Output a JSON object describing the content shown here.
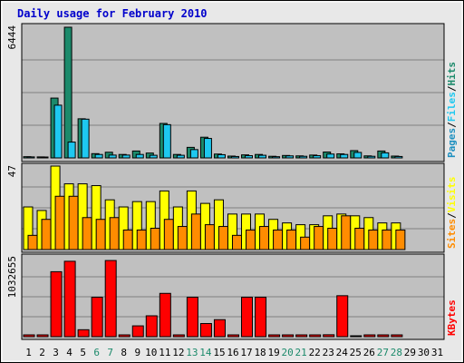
{
  "chart_data": {
    "type": "bar",
    "title": "Daily usage for February 2010",
    "x_labels": [
      "1",
      "2",
      "3",
      "4",
      "5",
      "6",
      "7",
      "8",
      "9",
      "10",
      "11",
      "12",
      "13",
      "14",
      "15",
      "16",
      "17",
      "18",
      "19",
      "20",
      "21",
      "22",
      "23",
      "24",
      "25",
      "26",
      "27",
      "28",
      "29",
      "30",
      "31"
    ],
    "weekend_days": [
      "6",
      "7",
      "13",
      "14",
      "20",
      "21",
      "27",
      "28"
    ],
    "panels": [
      {
        "ymax": 6444,
        "ymax_label": "6444",
        "legend": [
          "Pages",
          "/",
          "Files",
          "/",
          "Hits"
        ],
        "series": [
          {
            "name": "Hits",
            "values": [
              60,
              50,
              2950,
              6444,
              1930,
              210,
              280,
              170,
              340,
              240,
              1700,
              170,
              520,
              1020,
              190,
              90,
              150,
              170,
              80,
              120,
              100,
              140,
              290,
              200,
              360,
              100,
              340,
              90,
              0,
              0,
              0
            ]
          },
          {
            "name": "Files",
            "values": [
              50,
              40,
              2600,
              780,
              1910,
              170,
              140,
              140,
              170,
              130,
              1640,
              130,
              410,
              960,
              160,
              70,
              110,
              130,
              60,
              100,
              80,
              110,
              190,
              170,
              270,
              80,
              250,
              70,
              0,
              0,
              0
            ]
          },
          {
            "name": "Pages",
            "values": [
              0,
              0,
              0,
              0,
              0,
              0,
              0,
              0,
              0,
              0,
              0,
              0,
              0,
              0,
              0,
              0,
              0,
              0,
              0,
              0,
              0,
              0,
              0,
              0,
              0,
              0,
              0,
              0,
              0,
              0,
              0
            ]
          }
        ]
      },
      {
        "ymax": 47,
        "ymax_label": "47",
        "legend": [
          "Sites",
          "/",
          "Visits"
        ],
        "series": [
          {
            "name": "Visits",
            "values": [
              24,
              22,
              47,
              37,
              37,
              36,
              28,
              24,
              27,
              27,
              33,
              24,
              33,
              26,
              28,
              20,
              20,
              20,
              17,
              15,
              14,
              14,
              19,
              20,
              19,
              18,
              15,
              15,
              0,
              0,
              0
            ]
          },
          {
            "name": "Sites",
            "values": [
              8,
              17,
              30,
              30,
              18,
              17,
              18,
              11,
              11,
              12,
              17,
              13,
              20,
              14,
              13,
              8,
              11,
              13,
              11,
              11,
              7,
              13,
              12,
              19,
              12,
              11,
              11,
              11,
              0,
              0,
              0
            ]
          }
        ]
      },
      {
        "ymax": 1032655,
        "ymax_label": "1032655",
        "legend": [
          "KBytes"
        ],
        "series": [
          {
            "name": "KBytes",
            "values": [
              0,
              0,
              840000,
              975000,
              90000,
              510000,
              985000,
              0,
              140000,
              270000,
              560000,
              0,
              510000,
              170000,
              220000,
              0,
              510000,
              510000,
              0,
              0,
              0,
              0,
              25000,
              530000,
              5000,
              0,
              0,
              0,
              0,
              0,
              0
            ]
          }
        ]
      }
    ],
    "colors": {
      "hits": "#1c8a6b",
      "files": "#1ec8f0",
      "pages": "#1e90c0",
      "visits": "#ffff00",
      "sites": "#ff8c00",
      "kbytes": "#ff0000",
      "title": "#0000cc",
      "weekend_label": "#1c8a6b",
      "plot_bg": "#c0c0c0",
      "frame_bg": "#e8e8e8"
    }
  }
}
